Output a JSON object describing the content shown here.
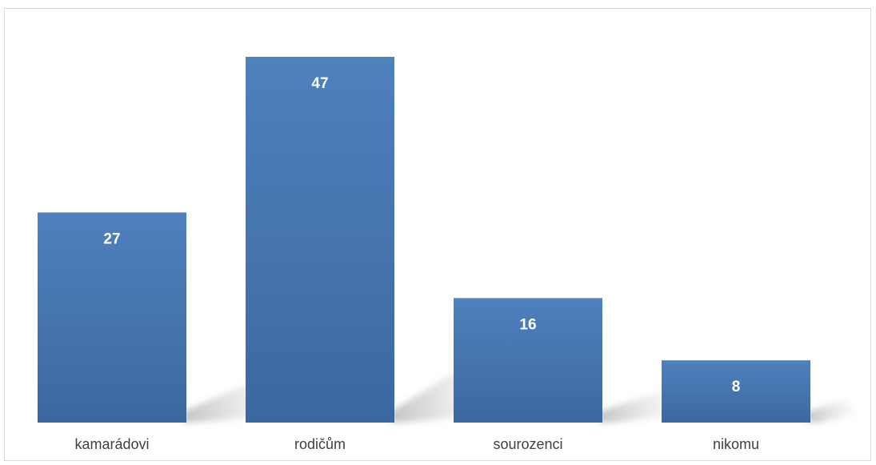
{
  "chart_data": {
    "type": "bar",
    "categories": [
      "kamarádovi",
      "rodičům",
      "sourozenci",
      "nikomu"
    ],
    "values": [
      27,
      47,
      16,
      8
    ],
    "title": "",
    "xlabel": "",
    "ylabel": "",
    "ylim": [
      0,
      47
    ],
    "grid": false,
    "legend": false,
    "data_labels": true,
    "bar_color": "#4a7ebb",
    "label_color": "#ffffff"
  }
}
